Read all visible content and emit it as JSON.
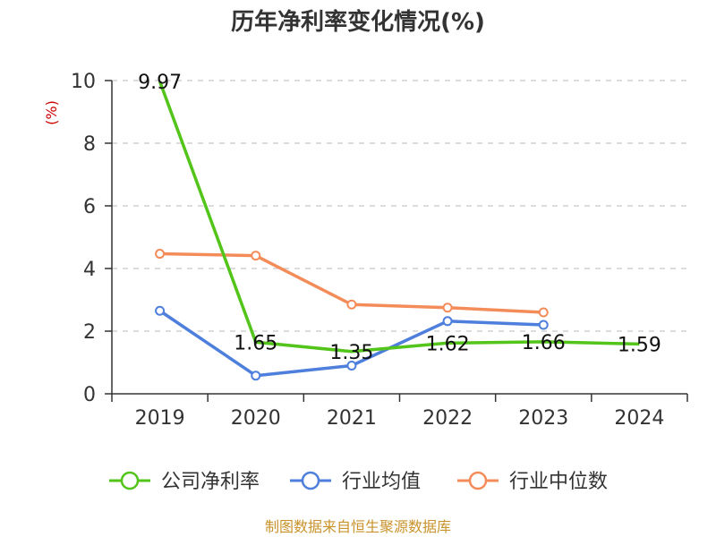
{
  "chart_data": {
    "type": "line",
    "title": "历年净利率变化情况(%)",
    "y_unit": "(%)",
    "categories": [
      "2019",
      "2020",
      "2021",
      "2022",
      "2023",
      "2024"
    ],
    "ylim": [
      0,
      10
    ],
    "yticks": [
      "0",
      "2",
      "4",
      "6",
      "8",
      "10"
    ],
    "grid": true,
    "legend_position": "bottom",
    "series": [
      {
        "name": "公司净利率",
        "color": "#52c41a",
        "values": [
          9.97,
          1.65,
          1.35,
          1.62,
          1.66,
          1.59
        ],
        "labels": [
          "9.97",
          "1.65",
          "1.35",
          "1.62",
          "1.66",
          "1.59"
        ]
      },
      {
        "name": "行业均值",
        "color": "#4e7fdc",
        "values": [
          2.65,
          0.58,
          0.9,
          2.32,
          2.2,
          null
        ]
      },
      {
        "name": "行业中位数",
        "color": "#f48c5a",
        "values": [
          4.47,
          4.41,
          2.85,
          2.75,
          2.6,
          null
        ]
      }
    ]
  },
  "source": "制图数据来自恒生聚源数据库"
}
